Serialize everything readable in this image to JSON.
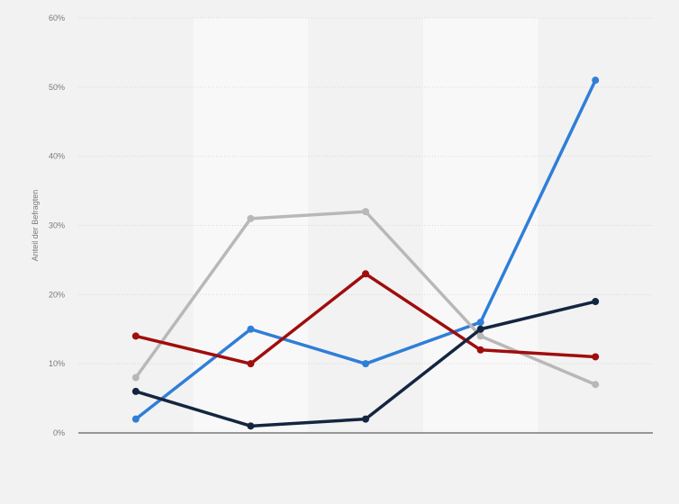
{
  "chart_data": {
    "type": "line",
    "title": "",
    "xlabel": "",
    "ylabel": "Anteil der Befragten",
    "ylim": [
      0,
      60
    ],
    "yticks": [
      0,
      10,
      20,
      30,
      40,
      50,
      60
    ],
    "ytick_labels": [
      "0%",
      "10%",
      "20%",
      "30%",
      "40%",
      "50%",
      "60%"
    ],
    "categories": [
      "",
      "",
      "",
      "",
      ""
    ],
    "grid": true,
    "legend": "none",
    "series": [
      {
        "color": "#2f7ed8",
        "values": [
          2,
          15,
          10,
          16,
          51
        ]
      },
      {
        "color": "#b8b8b8",
        "values": [
          8,
          31,
          32,
          14,
          7
        ]
      },
      {
        "color": "#a00d0d",
        "values": [
          14,
          10,
          23,
          12,
          11
        ]
      },
      {
        "color": "#14263f",
        "values": [
          6,
          1,
          2,
          15,
          19
        ]
      }
    ]
  },
  "colors": {
    "background": "#f2f2f2",
    "band_light": "#f8f8f8",
    "gridline": "#d9d9d9",
    "baseline": "#3a3a3a"
  }
}
